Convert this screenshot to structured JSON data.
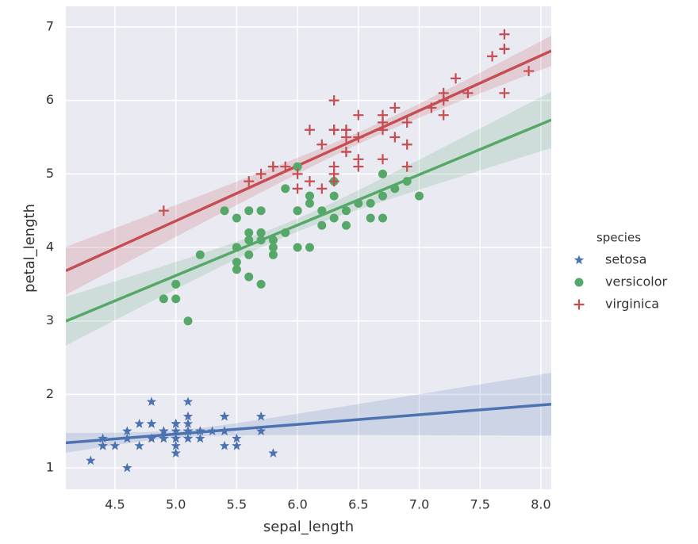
{
  "chart_data": {
    "type": "scatter",
    "x_label": "sepal_length",
    "y_label": "petal_length",
    "legend_title": "species",
    "legend_position": "right",
    "grid": true,
    "regression": true,
    "xlim": [
      4.096,
      8.085
    ],
    "ylim": [
      0.71,
      7.28
    ],
    "xticks": [
      4.5,
      {
        "value": 5,
        "label": "5.0"
      },
      5.5,
      {
        "value": 6,
        "label": "6.0"
      },
      6.5,
      {
        "value": 7,
        "label": "7.0"
      },
      7.5,
      {
        "value": 8,
        "label": "8.0"
      }
    ],
    "yticks": [
      1,
      2,
      3,
      4,
      5,
      6,
      7
    ],
    "series": [
      {
        "name": "setosa",
        "color": "#4c72b0",
        "marker": "star",
        "x": [
          5.1,
          4.9,
          4.7,
          4.6,
          5.0,
          5.4,
          4.6,
          5.0,
          4.4,
          4.9,
          5.4,
          4.8,
          4.8,
          4.3,
          5.8,
          5.7,
          5.4,
          5.1,
          5.7,
          5.1,
          5.4,
          5.1,
          4.6,
          5.1,
          4.8,
          5.0,
          5.0,
          5.2,
          5.2,
          4.7,
          4.8,
          5.4,
          5.2,
          5.5,
          4.9,
          5.0,
          5.5,
          4.9,
          4.4,
          5.1,
          5.0,
          4.5,
          4.4,
          5.0,
          5.1,
          4.8,
          5.1,
          4.6,
          5.3,
          5.0
        ],
        "y": [
          1.4,
          1.4,
          1.3,
          1.5,
          1.4,
          1.7,
          1.4,
          1.5,
          1.4,
          1.5,
          1.5,
          1.6,
          1.4,
          1.1,
          1.2,
          1.5,
          1.3,
          1.4,
          1.7,
          1.5,
          1.7,
          1.5,
          1.0,
          1.7,
          1.9,
          1.6,
          1.6,
          1.5,
          1.4,
          1.6,
          1.6,
          1.5,
          1.5,
          1.4,
          1.5,
          1.2,
          1.3,
          1.4,
          1.3,
          1.5,
          1.3,
          1.3,
          1.3,
          1.6,
          1.9,
          1.4,
          1.6,
          1.4,
          1.5,
          1.4
        ]
      },
      {
        "name": "versicolor",
        "color": "#55a868",
        "marker": "circle",
        "x": [
          7.0,
          6.4,
          6.9,
          5.5,
          6.5,
          5.7,
          6.3,
          4.9,
          6.6,
          5.2,
          5.0,
          5.9,
          6.0,
          6.1,
          5.6,
          6.7,
          5.6,
          5.8,
          6.2,
          5.6,
          5.9,
          6.1,
          6.3,
          6.1,
          6.4,
          6.6,
          6.8,
          6.7,
          6.0,
          5.7,
          5.5,
          5.5,
          5.8,
          6.0,
          5.4,
          6.0,
          6.7,
          6.3,
          5.6,
          5.5,
          5.5,
          6.1,
          5.8,
          5.0,
          5.6,
          5.7,
          5.7,
          6.2,
          5.1,
          5.7
        ],
        "y": [
          4.7,
          4.5,
          4.9,
          4.0,
          4.6,
          4.5,
          4.7,
          3.3,
          4.6,
          3.9,
          3.5,
          4.2,
          4.0,
          4.7,
          3.6,
          4.4,
          4.5,
          4.1,
          4.5,
          3.9,
          4.8,
          4.0,
          4.9,
          4.7,
          4.3,
          4.4,
          4.8,
          5.0,
          4.5,
          3.5,
          3.8,
          3.7,
          3.9,
          5.1,
          4.5,
          4.5,
          4.7,
          4.4,
          4.1,
          4.0,
          4.4,
          4.6,
          4.0,
          3.3,
          4.2,
          4.2,
          4.2,
          4.3,
          3.0,
          4.1
        ]
      },
      {
        "name": "virginica",
        "color": "#c44e52",
        "marker": "plus",
        "x": [
          6.3,
          5.8,
          7.1,
          6.3,
          6.5,
          7.6,
          4.9,
          7.3,
          6.7,
          7.2,
          6.5,
          6.4,
          6.8,
          5.7,
          5.8,
          6.4,
          6.5,
          7.7,
          7.7,
          6.0,
          6.9,
          5.6,
          7.7,
          6.3,
          6.7,
          7.2,
          6.2,
          6.1,
          6.4,
          7.2,
          7.4,
          7.9,
          6.4,
          6.3,
          6.1,
          7.7,
          6.3,
          6.4,
          6.0,
          6.9,
          6.7,
          6.9,
          5.8,
          6.8,
          6.7,
          6.7,
          6.3,
          6.5,
          6.2,
          5.9
        ],
        "y": [
          6.0,
          5.1,
          5.9,
          5.6,
          5.8,
          6.6,
          4.5,
          6.3,
          5.8,
          6.1,
          5.1,
          5.3,
          5.5,
          5.0,
          5.1,
          5.3,
          5.5,
          6.7,
          6.9,
          5.0,
          5.7,
          4.9,
          6.7,
          4.9,
          5.7,
          6.0,
          4.8,
          4.9,
          5.6,
          5.8,
          6.1,
          6.4,
          5.6,
          5.1,
          5.6,
          6.1,
          5.6,
          5.5,
          4.8,
          5.4,
          5.6,
          5.1,
          5.1,
          5.9,
          5.7,
          5.2,
          5.0,
          5.2,
          5.4,
          5.1
        ]
      }
    ]
  }
}
